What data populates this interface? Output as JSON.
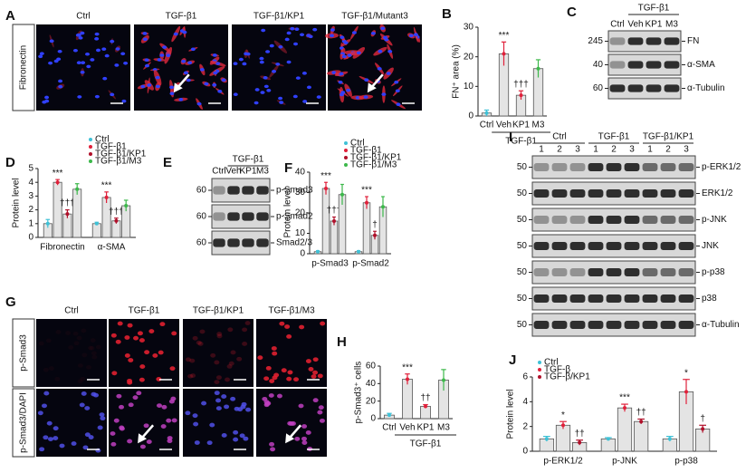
{
  "micrographs": [
    {
      "panel": "A",
      "side_label": "Fibronectin",
      "columns": [
        "Ctrl",
        "TGF-β1",
        "TGF-β1/KP1",
        "TGF-β1/Mutant3"
      ]
    },
    {
      "panel": "G",
      "columns": [
        "Ctrl",
        "TGF-β1",
        "TGF-β1/KP1",
        "TGF-β1/M3"
      ],
      "rows": [
        "p-Smad3",
        "p-Smad3/DAPI"
      ]
    }
  ],
  "blots": [
    {
      "panel": "C",
      "group": "TGF-β1",
      "lanes": [
        "Ctrl",
        "Veh",
        "KP1",
        "M3"
      ],
      "rows": [
        {
          "mw": 245,
          "label": "FN"
        },
        {
          "mw": 40,
          "label": "α-SMA"
        },
        {
          "mw": 60,
          "label": "α-Tubulin"
        }
      ]
    },
    {
      "panel": "E",
      "group": "TGF-β1",
      "lanes": [
        "Ctrl",
        "Veh",
        "KP1",
        "M3"
      ],
      "rows": [
        {
          "mw": 60,
          "label": "p-Smad3"
        },
        {
          "mw": 60,
          "label": "p-Smad2"
        },
        {
          "mw": 60,
          "label": "Smad2/3"
        }
      ]
    },
    {
      "panel": "I",
      "groups": [
        {
          "name": "Ctrl",
          "lanes": [
            1,
            2,
            3
          ]
        },
        {
          "name": "TGF-β1",
          "lanes": [
            1,
            2,
            3
          ]
        },
        {
          "name": "TGF-β1/KP1",
          "lanes": [
            1,
            2,
            3
          ]
        }
      ],
      "rows": [
        {
          "mw": 50,
          "label": "p-ERK1/2"
        },
        {
          "mw": 50,
          "label": "ERK1/2"
        },
        {
          "mw": 50,
          "label": "p-JNK"
        },
        {
          "mw": 50,
          "label": "JNK"
        },
        {
          "mw": 50,
          "label": "p-p38"
        },
        {
          "mw": 50,
          "label": "p38"
        },
        {
          "mw": 50,
          "label": "α-Tubulin"
        }
      ]
    }
  ],
  "chart_data": [
    {
      "type": "bar",
      "panel": "B",
      "y_label": "FN⁺ area (%)",
      "categories": [
        "Ctrl",
        "Veh",
        "KP1",
        "M3"
      ],
      "group_label": "TGF-β1",
      "values": [
        1,
        21,
        7,
        16
      ],
      "errors": [
        1,
        4,
        1.5,
        3
      ],
      "colors": [
        "#3fc1d6",
        "#e0203a",
        "#e0203a",
        "#3cb84a"
      ],
      "significance": [
        null,
        "***",
        "†††",
        null
      ],
      "ylim": [
        0,
        30
      ],
      "yticks": [
        0,
        10,
        20,
        30
      ]
    },
    {
      "type": "grouped_bar",
      "panel": "D",
      "y_label": "Protein level",
      "categories": [
        "Fibronectin",
        "α-SMA"
      ],
      "legend": "top-right",
      "series": [
        {
          "name": "Ctrl",
          "color": "#3fc1d6",
          "values": [
            1,
            1
          ],
          "errors": [
            0.3,
            0.1
          ],
          "significance": [
            null,
            null
          ]
        },
        {
          "name": "TGF-β1",
          "color": "#e0203a",
          "values": [
            4,
            2.9
          ],
          "errors": [
            0.2,
            0.4
          ],
          "significance": [
            "***",
            "***"
          ]
        },
        {
          "name": "TGF-β1/KP1",
          "color": "#b0102a",
          "values": [
            1.7,
            1.2
          ],
          "errors": [
            0.3,
            0.2
          ],
          "significance": [
            "†††",
            "†††"
          ]
        },
        {
          "name": "TGF-β1/M3",
          "color": "#3cb84a",
          "values": [
            3.5,
            2.3
          ],
          "errors": [
            0.4,
            0.4
          ],
          "significance": [
            null,
            null
          ]
        }
      ],
      "ylim": [
        0,
        5
      ],
      "yticks": [
        0,
        1,
        2,
        3,
        4,
        5
      ]
    },
    {
      "type": "grouped_bar",
      "panel": "F",
      "y_label": "Protein level",
      "categories": [
        "p-Smad3",
        "p-Smad2"
      ],
      "legend": "top-right",
      "series": [
        {
          "name": "Ctrl",
          "color": "#3fc1d6",
          "values": [
            1,
            1
          ],
          "errors": [
            0.5,
            0.5
          ],
          "significance": [
            null,
            null
          ]
        },
        {
          "name": "TGF-β1",
          "color": "#e0203a",
          "values": [
            32,
            25
          ],
          "errors": [
            3,
            3
          ],
          "significance": [
            "***",
            "***"
          ]
        },
        {
          "name": "TGF-β1/KP1",
          "color": "#b0102a",
          "values": [
            16,
            9
          ],
          "errors": [
            2,
            2
          ],
          "significance": [
            "†††",
            "†"
          ]
        },
        {
          "name": "TGF-β1/M3",
          "color": "#3cb84a",
          "values": [
            29,
            23
          ],
          "errors": [
            5,
            5
          ],
          "significance": [
            null,
            null
          ]
        }
      ],
      "ylim": [
        0,
        40
      ],
      "yticks": [
        0,
        10,
        20,
        30,
        40
      ]
    },
    {
      "type": "bar",
      "panel": "H",
      "y_label": "p-Smad3⁺ cells",
      "categories": [
        "Ctrl",
        "Veh",
        "KP1",
        "M3"
      ],
      "group_label": "TGF-β1",
      "values": [
        4,
        45,
        14,
        44
      ],
      "errors": [
        2,
        6,
        2,
        12
      ],
      "colors": [
        "#3fc1d6",
        "#e0203a",
        "#e0203a",
        "#3cb84a"
      ],
      "significance": [
        null,
        "***",
        "††",
        null
      ],
      "ylim": [
        0,
        60
      ],
      "yticks": [
        0,
        20,
        40,
        60
      ]
    },
    {
      "type": "grouped_bar",
      "panel": "J",
      "y_label": "Protein level",
      "categories": [
        "p-ERK1/2",
        "p-JNK",
        "p-p38"
      ],
      "legend": "top-left",
      "series": [
        {
          "name": "Ctrl",
          "color": "#3fc1d6",
          "values": [
            1,
            1,
            1
          ],
          "errors": [
            0.2,
            0.1,
            0.2
          ],
          "significance": [
            null,
            null,
            null
          ]
        },
        {
          "name": "TGF-β",
          "color": "#e0203a",
          "values": [
            2.1,
            3.5,
            4.8
          ],
          "errors": [
            0.3,
            0.3,
            1
          ],
          "significance": [
            "*",
            "***",
            "*"
          ]
        },
        {
          "name": "TGF-β/KP1",
          "color": "#b0102a",
          "values": [
            0.7,
            2.4,
            1.8
          ],
          "errors": [
            0.2,
            0.2,
            0.3
          ],
          "significance": [
            "††",
            "††",
            "†"
          ]
        }
      ],
      "ylim": [
        0,
        6
      ],
      "yticks": [
        0,
        2,
        4,
        6
      ]
    }
  ]
}
